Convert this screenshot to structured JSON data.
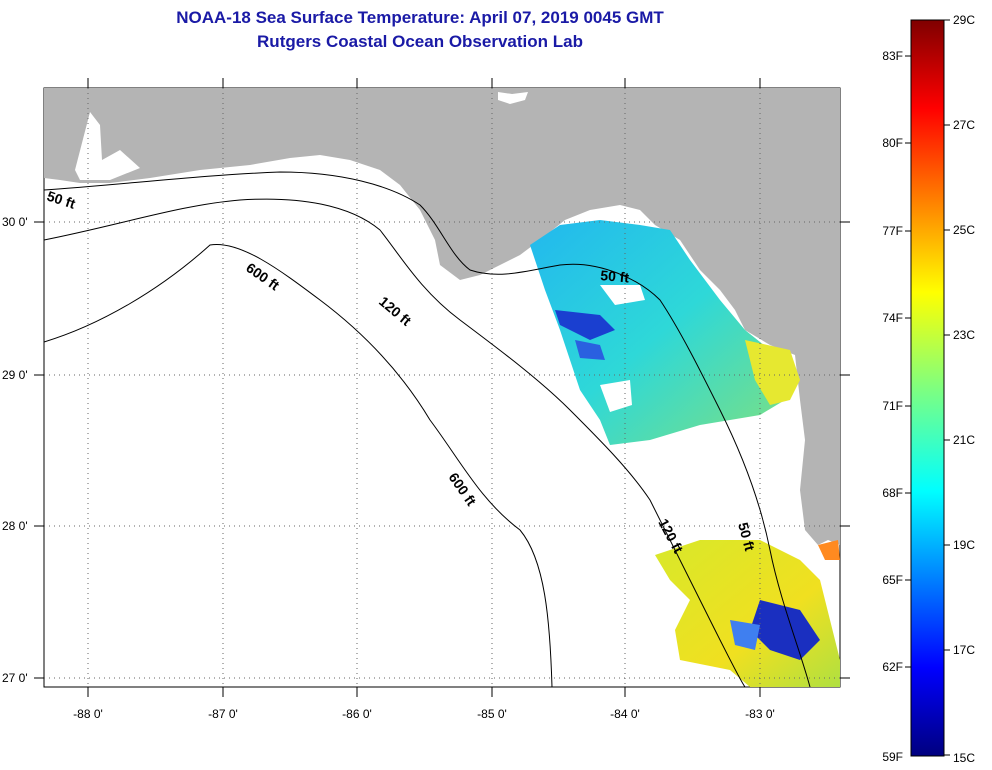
{
  "title": "NOAA-18 Sea Surface Temperature:  April 07, 2019 0045 GMT",
  "subtitle": "Rutgers Coastal Ocean Observation Lab",
  "map": {
    "lon_labels": [
      "-88 0'",
      "-87 0'",
      "-86 0'",
      "-85 0'",
      "-84 0'",
      "-83 0'"
    ],
    "lat_labels": [
      "30 0'",
      "29 0'",
      "28 0'",
      "27 0'"
    ],
    "contour_labels": [
      "50 ft",
      "600 ft",
      "120 ft",
      "50 ft",
      "600 ft",
      "120 ft",
      "50 ft"
    ],
    "colors": {
      "land": "#b4b4b4",
      "water": "#ffffff",
      "title": "#1a1aa6"
    }
  },
  "colorbar": {
    "fahrenheit_labels": [
      "83F",
      "80F",
      "77F",
      "74F",
      "71F",
      "68F",
      "65F",
      "62F",
      "59F"
    ],
    "celsius_labels": [
      "29C",
      "27C",
      "25C",
      "23C",
      "21C",
      "19C",
      "17C",
      "15C"
    ]
  }
}
